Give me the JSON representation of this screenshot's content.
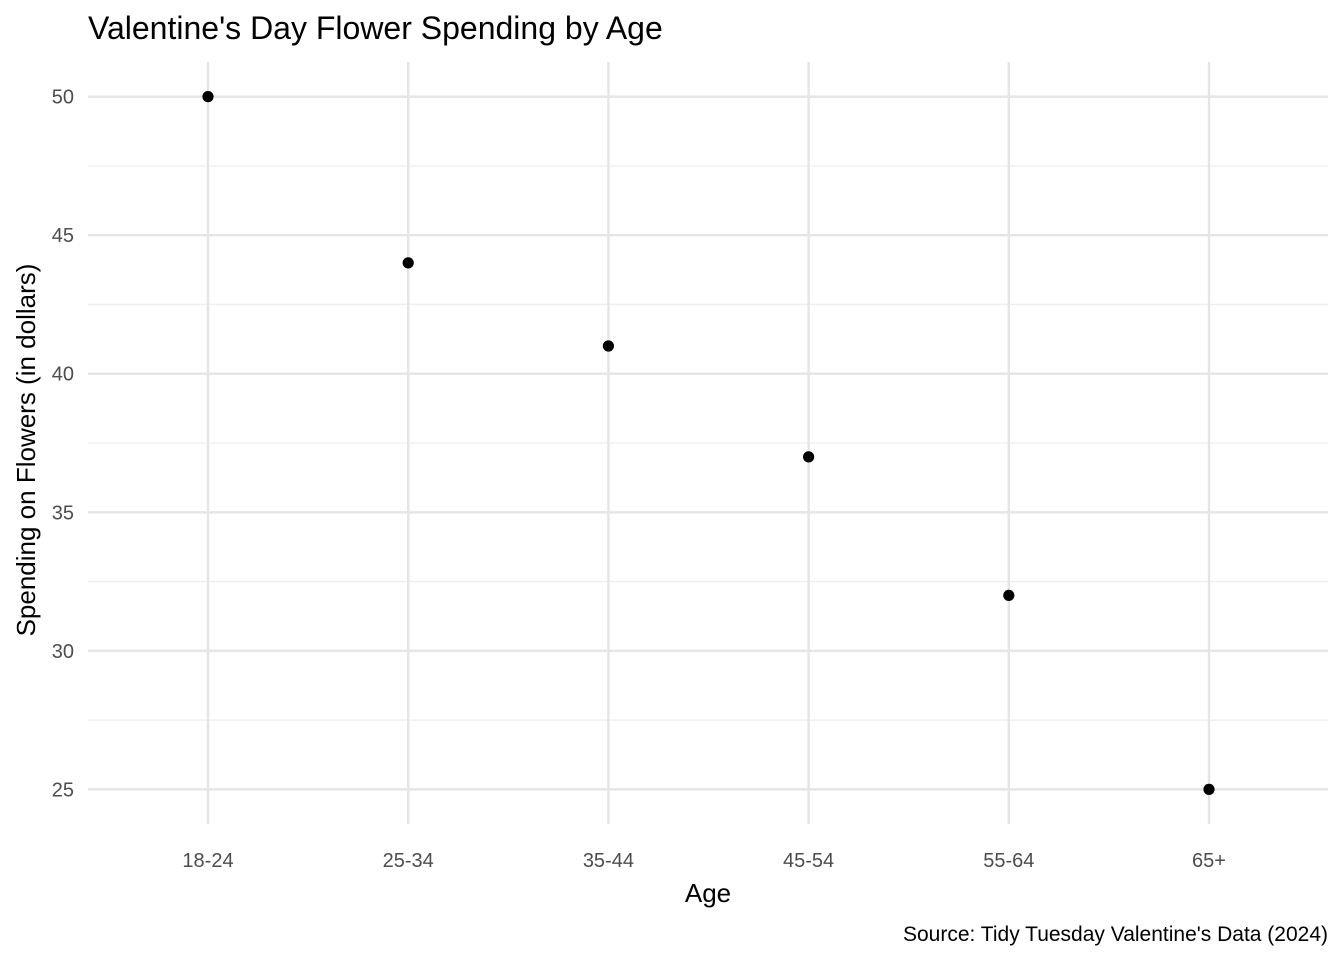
{
  "chart_data": {
    "type": "scatter",
    "title": "Valentine's Day Flower Spending by Age",
    "xlabel": "Age",
    "ylabel": "Spending on Flowers (in dollars)",
    "caption": "Source: Tidy Tuesday Valentine's Data (2024)",
    "categories": [
      "18-24",
      "25-34",
      "35-44",
      "45-54",
      "55-64",
      "65+"
    ],
    "values": [
      50,
      44,
      41,
      37,
      32,
      25
    ],
    "y_ticks": [
      25,
      30,
      35,
      40,
      45,
      50
    ],
    "ylim": [
      23.75,
      51.25
    ],
    "grid": true,
    "legend": "none",
    "colors": {
      "point": "#000000",
      "grid_major": "#e5e5e5",
      "grid_minor": "#eeeeee",
      "tick_text": "#4d4d4d"
    }
  }
}
